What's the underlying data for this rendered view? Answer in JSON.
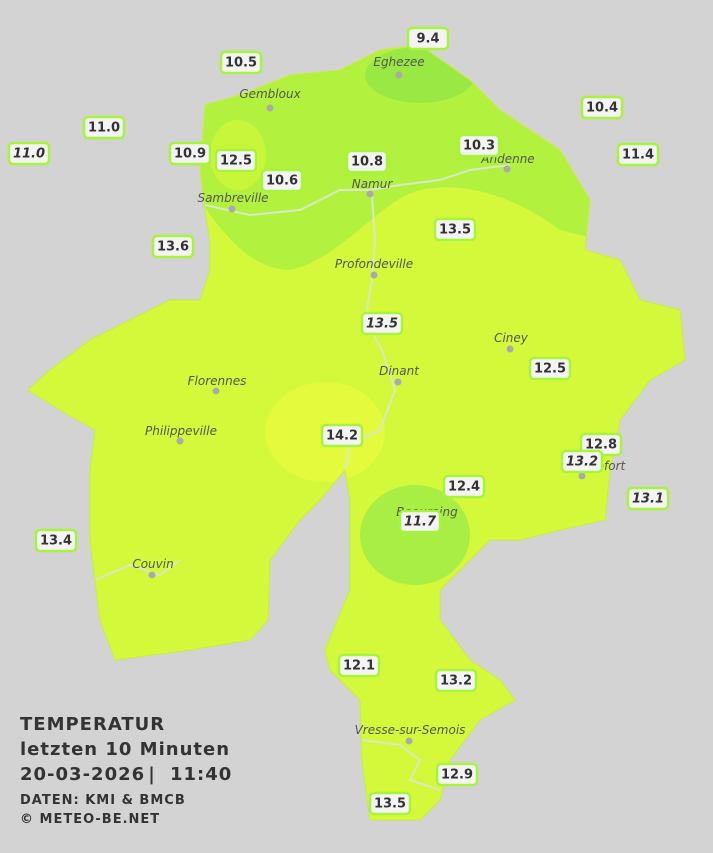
{
  "title": {
    "line1": "TEMPERATUR",
    "line2": "letzten 10 Minuten",
    "date": "20-03-2026",
    "time": "11:40",
    "separator": "|"
  },
  "credits": {
    "data": "DATEN: KMI & BMCB",
    "site": "© METEO-BE.NET"
  },
  "places": [
    {
      "name": "Eghezee"
    },
    {
      "name": "Gembloux"
    },
    {
      "name": "Andenne"
    },
    {
      "name": "Namur"
    },
    {
      "name": "Sambreville"
    },
    {
      "name": "Profondeville"
    },
    {
      "name": "Ciney"
    },
    {
      "name": "Dinant"
    },
    {
      "name": "Florennes"
    },
    {
      "name": "Philippeville"
    },
    {
      "name": "Rochefort"
    },
    {
      "name": "Beauraing"
    },
    {
      "name": "Couvin"
    },
    {
      "name": "Vresse-sur-Semois"
    }
  ],
  "stations": [
    {
      "value": "9.4"
    },
    {
      "value": "10.5"
    },
    {
      "value": "10.4"
    },
    {
      "value": "11.0"
    },
    {
      "value": "11.0",
      "italic": true
    },
    {
      "value": "10.9"
    },
    {
      "value": "12.5"
    },
    {
      "value": "10.8"
    },
    {
      "value": "10.3"
    },
    {
      "value": "11.4"
    },
    {
      "value": "10.6"
    },
    {
      "value": "13.5"
    },
    {
      "value": "13.6"
    },
    {
      "value": "13.5",
      "italic": true
    },
    {
      "value": "12.5"
    },
    {
      "value": "14.2"
    },
    {
      "value": "12.8"
    },
    {
      "value": "13.2",
      "italic": true
    },
    {
      "value": "12.4"
    },
    {
      "value": "13.1",
      "italic": true
    },
    {
      "value": "11.7",
      "italic": true
    },
    {
      "value": "13.4"
    },
    {
      "value": "12.1"
    },
    {
      "value": "13.2"
    },
    {
      "value": "12.9"
    },
    {
      "value": "13.5"
    }
  ]
}
